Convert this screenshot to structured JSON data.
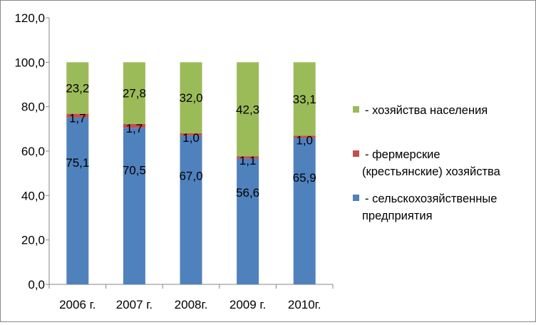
{
  "chart_data": {
    "type": "bar",
    "stacked": true,
    "categories": [
      "2006 г.",
      "2007 г.",
      "2008г.",
      "2009 г.",
      "2010г."
    ],
    "series": [
      {
        "name": "- сельскохозяйственные предприятия",
        "legend_lines": [
          "- сельскохозяйственные",
          "предприятия"
        ],
        "color": "#4F81BD",
        "values": [
          75.1,
          70.5,
          67.0,
          56.6,
          65.9
        ]
      },
      {
        "name": "- фермерские (крестьянские) хозяйства",
        "legend_lines": [
          "- фермерские",
          "(крестьянские) хозяйства"
        ],
        "color": "#C0504D",
        "values": [
          1.7,
          1.7,
          1.0,
          1.1,
          1.0
        ]
      },
      {
        "name": "- хозяйства населения",
        "legend_lines": [
          "- хозяйства населения"
        ],
        "color": "#9BBB59",
        "values": [
          23.2,
          27.8,
          32.0,
          42.3,
          33.1
        ]
      }
    ],
    "yticks": [
      "0,0",
      "20,0",
      "40,0",
      "60,0",
      "80,0",
      "100,0",
      "120,0"
    ],
    "ylim": [
      0,
      120
    ],
    "ystep": 20,
    "grid": false,
    "legend_position": "right",
    "title": "",
    "xlabel": "",
    "ylabel": ""
  }
}
